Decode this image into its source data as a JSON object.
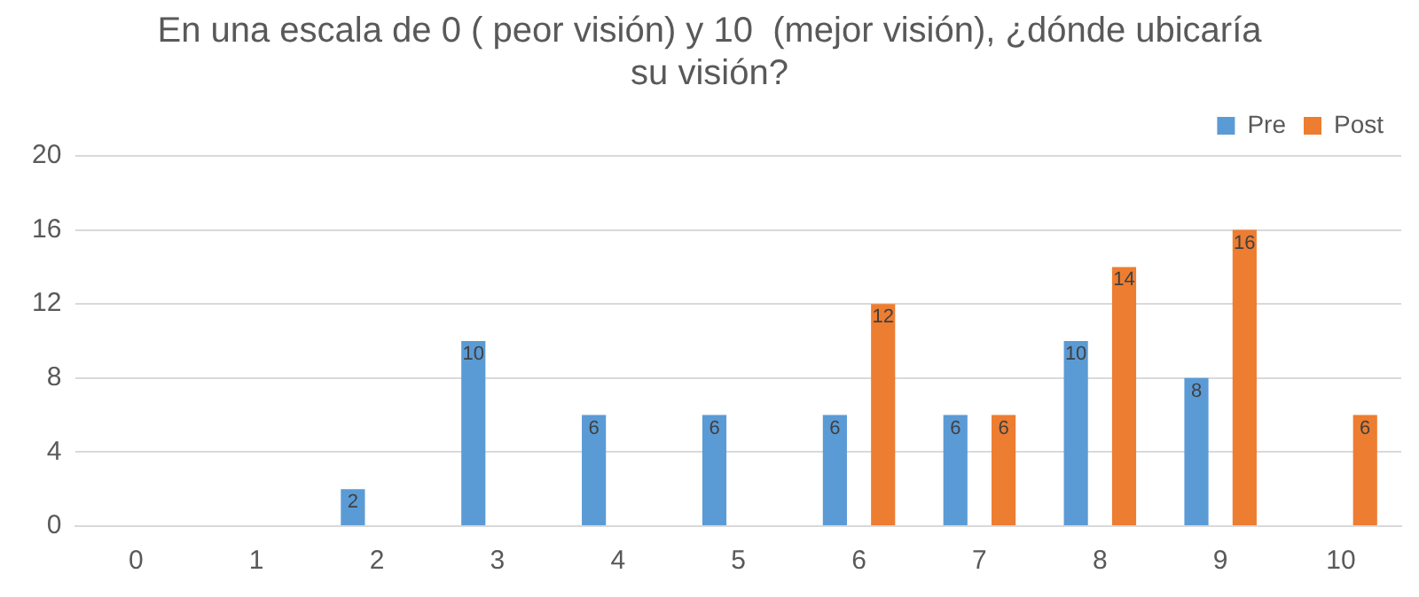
{
  "chart_data": {
    "type": "bar",
    "title": "En una escala de 0 ( peor visión) y 10  (mejor visión), ¿dónde ubicaría su visión?",
    "categories": [
      "0",
      "1",
      "2",
      "3",
      "4",
      "5",
      "6",
      "7",
      "8",
      "9",
      "10"
    ],
    "series": [
      {
        "name": "Pre",
        "color": "#5b9bd5",
        "values": [
          0,
          0,
          2,
          10,
          6,
          6,
          6,
          6,
          10,
          8,
          0
        ],
        "value_labels": [
          null,
          null,
          "2",
          "10",
          "6",
          "6",
          "6",
          "6",
          "10",
          "8",
          null
        ]
      },
      {
        "name": "Post",
        "color": "#ed7d31",
        "values": [
          0,
          0,
          0,
          0,
          0,
          0,
          12,
          6,
          14,
          16,
          6
        ],
        "value_labels": [
          null,
          null,
          null,
          null,
          null,
          null,
          "12",
          "6",
          "14",
          "16",
          "6"
        ]
      }
    ],
    "ylim": [
      0,
      20
    ],
    "yticks": [
      0,
      4,
      8,
      12,
      16,
      20
    ],
    "grid": "y",
    "legend": "top right"
  }
}
